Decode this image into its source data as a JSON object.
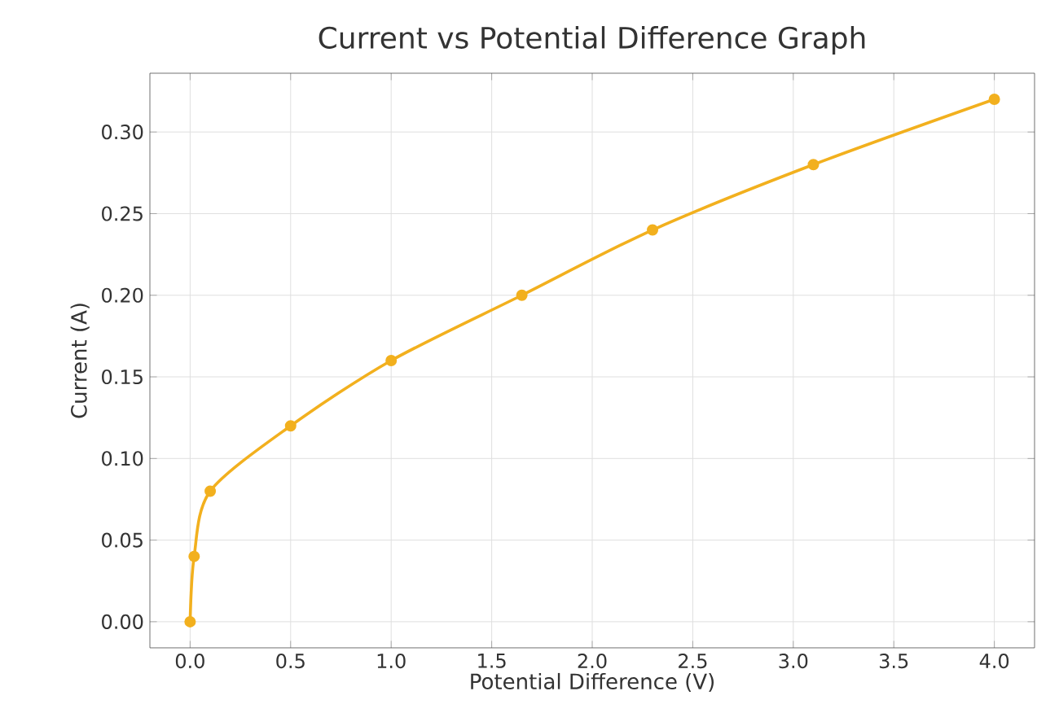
{
  "chart_data": {
    "type": "line",
    "title": "Current vs Potential Difference Graph",
    "xlabel": "Potential Difference (V)",
    "ylabel": "Current (A)",
    "x": [
      0.0,
      0.02,
      0.1,
      0.5,
      1.0,
      1.65,
      2.3,
      3.1,
      4.0
    ],
    "series": [
      {
        "color": "#f2b01e",
        "values": [
          0.0,
          0.04,
          0.08,
          0.12,
          0.16,
          0.2,
          0.24,
          0.28,
          0.32
        ]
      }
    ],
    "xlim": [
      -0.2,
      4.2
    ],
    "ylim": [
      -0.016,
      0.336
    ],
    "xticks": [
      {
        "value": 0,
        "label": "0.0"
      },
      {
        "value": 0.5,
        "label": "0.5"
      },
      {
        "value": 1,
        "label": "1.0"
      },
      {
        "value": 1.5,
        "label": "1.5"
      },
      {
        "value": 2,
        "label": "2.0"
      },
      {
        "value": 2.5,
        "label": "2.5"
      },
      {
        "value": 3,
        "label": "3.0"
      },
      {
        "value": 3.5,
        "label": "3.5"
      },
      {
        "value": 4,
        "label": "4.0"
      }
    ],
    "yticks": [
      {
        "value": 0,
        "label": "0.00"
      },
      {
        "value": 0.05,
        "label": "0.05"
      },
      {
        "value": 0.1,
        "label": "0.10"
      },
      {
        "value": 0.15,
        "label": "0.15"
      },
      {
        "value": 0.2,
        "label": "0.20"
      },
      {
        "value": 0.25,
        "label": "0.25"
      },
      {
        "value": 0.3,
        "label": "0.30"
      }
    ],
    "grid": true,
    "marker": "circle",
    "line_style": "solid"
  }
}
